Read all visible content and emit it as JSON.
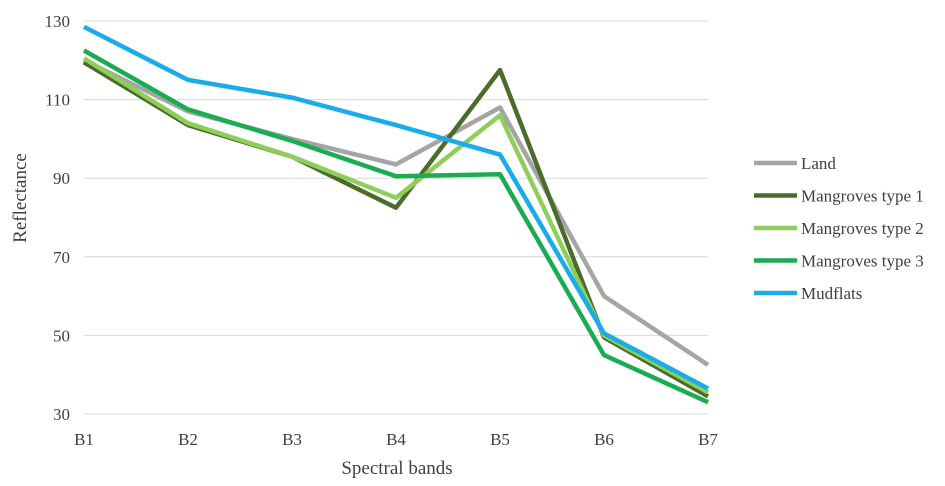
{
  "chart_data": {
    "type": "line",
    "xlabel": "Spectral bands",
    "ylabel": "Reflectance",
    "categories": [
      "B1",
      "B2",
      "B3",
      "B4",
      "B5",
      "B6",
      "B7"
    ],
    "ylim": [
      30,
      130
    ],
    "yticks": [
      30,
      50,
      70,
      90,
      110,
      130
    ],
    "grid": true,
    "legend_position": "right",
    "series": [
      {
        "name": "Land",
        "color": "#a5a5a5",
        "values": [
          120,
          107,
          100,
          93.5,
          108,
          60,
          42.5
        ]
      },
      {
        "name": "Mangroves type 1",
        "color": "#4a6b2a",
        "values": [
          119.5,
          103.5,
          95.5,
          82.5,
          117.5,
          49.5,
          34.5
        ]
      },
      {
        "name": "Mangroves type 2",
        "color": "#8fce5a",
        "values": [
          120.5,
          104,
          95.5,
          85,
          106,
          50,
          35.5
        ]
      },
      {
        "name": "Mangroves type 3",
        "color": "#1aac52",
        "values": [
          122.5,
          107.5,
          99.5,
          90.5,
          91,
          45,
          33
        ]
      },
      {
        "name": "Mudflats",
        "color": "#1aace8",
        "values": [
          128.5,
          115,
          110.5,
          103.5,
          96,
          50.5,
          36.5
        ]
      }
    ]
  }
}
